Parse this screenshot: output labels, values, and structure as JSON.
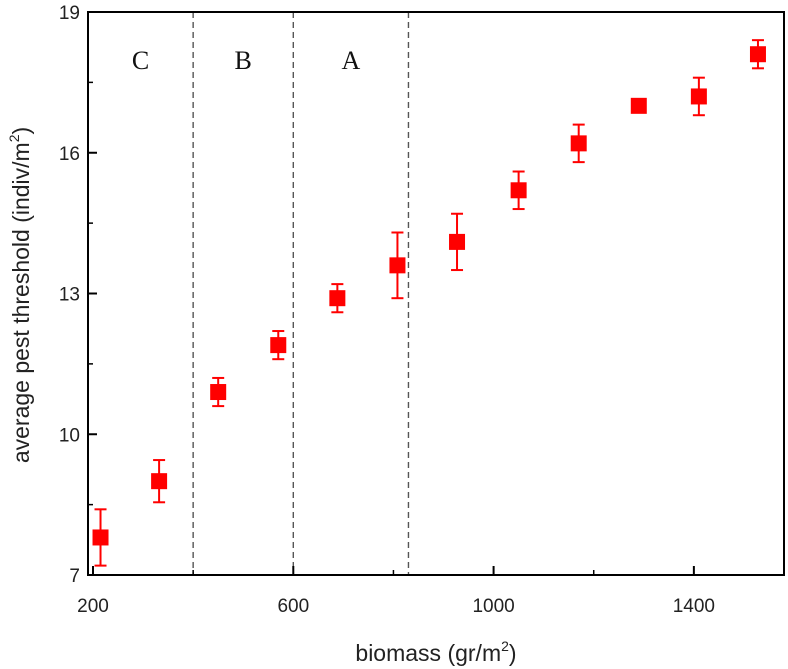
{
  "chart_data": {
    "type": "scatter",
    "xlabel": "biomass (gr/m",
    "xlabel_sup": "2",
    "xlabel_end": ")",
    "ylabel": "average pest threshold (indiv/m",
    "ylabel_sup": "2",
    "ylabel_end": ")",
    "xlim": [
      190,
      1580
    ],
    "ylim": [
      7,
      19
    ],
    "x_ticks": [
      200,
      600,
      1000,
      1400
    ],
    "y_ticks": [
      7,
      10,
      13,
      16,
      19
    ],
    "grid": false,
    "marker": "square",
    "color": "#ff0000",
    "regions": [
      {
        "label": "C",
        "x_from": 190,
        "x_to": 400
      },
      {
        "label": "B",
        "x_from": 400,
        "x_to": 600
      },
      {
        "label": "A",
        "x_from": 600,
        "x_to": 830
      }
    ],
    "dividers_x": [
      400,
      600,
      830
    ],
    "points": [
      {
        "x": 215,
        "y": 7.8,
        "err_lo": 7.2,
        "err_hi": 8.4
      },
      {
        "x": 332,
        "y": 9.0,
        "err_lo": 8.55,
        "err_hi": 9.45
      },
      {
        "x": 450,
        "y": 10.9,
        "err_lo": 10.6,
        "err_hi": 11.2
      },
      {
        "x": 570,
        "y": 11.9,
        "err_lo": 11.6,
        "err_hi": 12.2
      },
      {
        "x": 688,
        "y": 12.9,
        "err_lo": 12.6,
        "err_hi": 13.2
      },
      {
        "x": 808,
        "y": 13.6,
        "err_lo": 12.9,
        "err_hi": 14.3
      },
      {
        "x": 927,
        "y": 14.1,
        "err_lo": 13.5,
        "err_hi": 14.7
      },
      {
        "x": 1050,
        "y": 15.2,
        "err_lo": 14.8,
        "err_hi": 15.6
      },
      {
        "x": 1170,
        "y": 16.2,
        "err_lo": 15.8,
        "err_hi": 16.6
      },
      {
        "x": 1290,
        "y": 17.0,
        "err_lo": 16.9,
        "err_hi": 17.1
      },
      {
        "x": 1410,
        "y": 17.2,
        "err_lo": 16.8,
        "err_hi": 17.6
      },
      {
        "x": 1528,
        "y": 18.1,
        "err_lo": 17.8,
        "err_hi": 18.4
      }
    ]
  }
}
